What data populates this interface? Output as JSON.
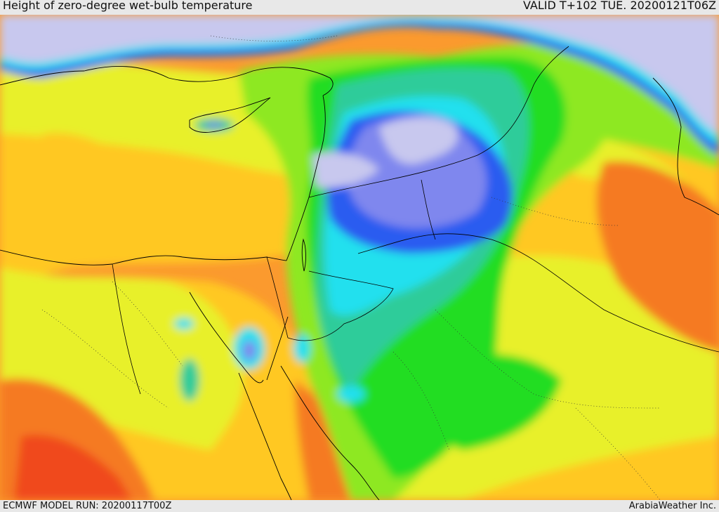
{
  "header": {
    "title": "Height of zero-degree wet-bulb temperature",
    "valid_time": "VALID T+102 TUE. 20200121T06Z"
  },
  "footer": {
    "model_run": "ECMWF MODEL RUN: 20200117T00Z",
    "credit": "ArabiaWeather Inc."
  },
  "map": {
    "region": "Eastern Mediterranean / Levant / Arabia",
    "palette": {
      "lowest": "#c8c8ee",
      "very_low": "#7f87ee",
      "low": "#2a5cf0",
      "cyan": "#22e0ee",
      "teal": "#2dcc9a",
      "green": "#22dd22",
      "light_green": "#8ee822",
      "yellow": "#e8f02a",
      "yellow_orange": "#ffc822",
      "orange": "#fb9a2e",
      "dark_orange": "#f57a22",
      "red_orange": "#f04a1e"
    }
  }
}
